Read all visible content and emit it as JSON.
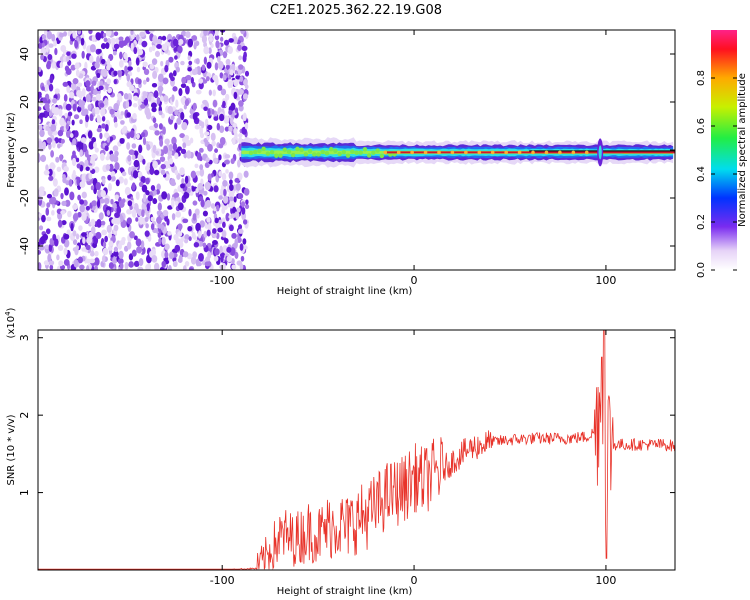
{
  "title": "C2E1.2025.362.22.19.G08",
  "chart_data": [
    {
      "type": "heatmap",
      "xlabel": "Height of straight line (km)",
      "ylabel": "Frequency (Hz)",
      "xlim": [
        -196,
        136
      ],
      "ylim": [
        -50,
        50
      ],
      "x_ticks": [
        "-100",
        "0",
        "100"
      ],
      "x_tick_values": [
        -100,
        0,
        100
      ],
      "y_ticks": [
        "40",
        "20",
        "0",
        "-20",
        "-40"
      ],
      "y_tick_values": [
        40,
        20,
        0,
        -20,
        -40
      ],
      "colorbar": {
        "label": "Normalized spectral amplitude",
        "ticks": [
          "0.0",
          "0.2",
          "0.4",
          "0.6",
          "0.8"
        ],
        "tick_values": [
          0.0,
          0.2,
          0.4,
          0.6,
          0.8
        ],
        "range": [
          0,
          1
        ]
      },
      "description_points": {
        "noise_region_x": [
          -196,
          -87
        ],
        "signal_ridge_x": [
          -90,
          136
        ],
        "signal_center_freq_hz": -1,
        "spike_x": 97
      }
    },
    {
      "type": "line",
      "xlabel": "Height of straight line (km)",
      "ylabel": "SNR (10 * v/v)",
      "scale_label": "(x10^4)",
      "scale_text": "(x10",
      "scale_exp": "4",
      "scale_close": ")",
      "xlim": [
        -196,
        136
      ],
      "ylim": [
        0,
        3.1
      ],
      "x_ticks": [
        "-100",
        "0",
        "100"
      ],
      "x_tick_values": [
        -100,
        0,
        100
      ],
      "y_ticks": [
        "1",
        "2",
        "3"
      ],
      "y_tick_values": [
        1,
        2,
        3
      ],
      "series": [
        {
          "name": "SNR",
          "color": "#e8332a",
          "x": [
            -196,
            -100,
            -82,
            -78,
            -72,
            -68,
            -64,
            -60,
            -55,
            -50,
            -45,
            -40,
            -35,
            -30,
            -25,
            -20,
            -15,
            -10,
            -5,
            0,
            5,
            10,
            15,
            20,
            25,
            30,
            40,
            50,
            60,
            70,
            80,
            90,
            95,
            98,
            100,
            102,
            105,
            110,
            120,
            130,
            136
          ],
          "values": [
            0.0,
            0.0,
            0.02,
            0.15,
            0.35,
            0.45,
            0.4,
            0.42,
            0.5,
            0.45,
            0.55,
            0.6,
            0.55,
            0.65,
            0.7,
            0.8,
            0.95,
            1.0,
            1.05,
            1.2,
            1.15,
            1.25,
            1.3,
            1.4,
            1.5,
            1.58,
            1.65,
            1.68,
            1.7,
            1.7,
            1.7,
            1.72,
            1.8,
            2.6,
            1.5,
            1.7,
            1.62,
            1.62,
            1.62,
            1.62,
            1.6
          ]
        }
      ]
    }
  ]
}
